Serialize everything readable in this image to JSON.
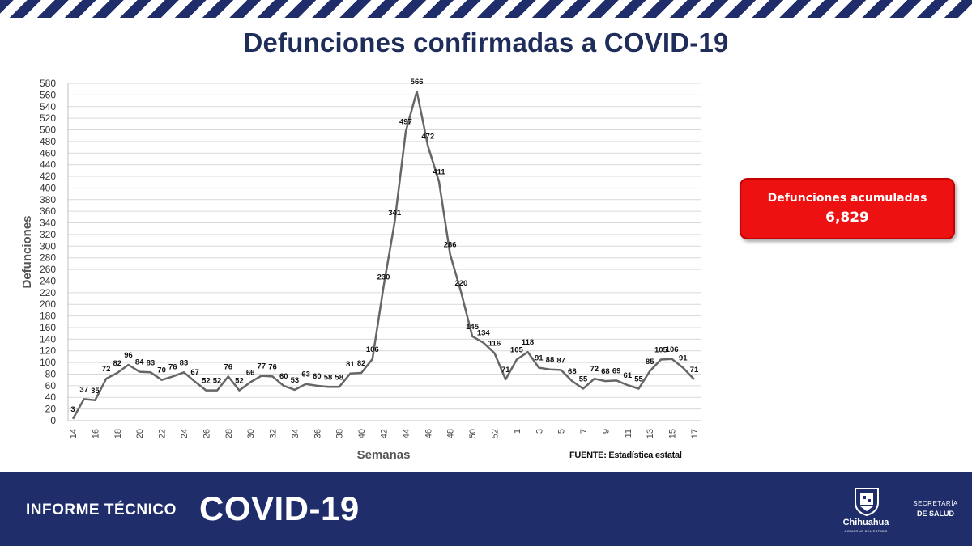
{
  "header": {
    "title": "Defunciones confirmadas a COVID-19"
  },
  "chart_data": {
    "type": "line",
    "title": "Defunciones confirmadas a COVID-19",
    "xlabel": "Semanas",
    "ylabel": "Defunciones",
    "ylim": [
      0,
      580
    ],
    "ytick_step": 20,
    "grid": true,
    "categories": [
      "14",
      "15",
      "16",
      "17",
      "18",
      "19",
      "20",
      "21",
      "22",
      "23",
      "24",
      "25",
      "26",
      "27",
      "28",
      "29",
      "30",
      "31",
      "32",
      "33",
      "34",
      "35",
      "36",
      "37",
      "38",
      "39",
      "40",
      "41",
      "42",
      "43",
      "44",
      "45",
      "46",
      "47",
      "48",
      "49",
      "50",
      "51",
      "52",
      "53",
      "1",
      "2",
      "3",
      "4",
      "5",
      "6",
      "7",
      "8",
      "9",
      "10",
      "11",
      "12",
      "13",
      "14",
      "15",
      "16",
      "17"
    ],
    "tick_labels": [
      "14",
      "16",
      "18",
      "20",
      "22",
      "24",
      "26",
      "28",
      "30",
      "32",
      "34",
      "36",
      "38",
      "40",
      "42",
      "44",
      "46",
      "48",
      "50",
      "52",
      "1",
      "3",
      "5",
      "7",
      "9",
      "11",
      "13",
      "15",
      "17"
    ],
    "values": [
      3,
      37,
      35,
      72,
      82,
      96,
      84,
      83,
      70,
      76,
      83,
      67,
      52,
      52,
      76,
      52,
      66,
      77,
      76,
      60,
      53,
      63,
      60,
      58,
      58,
      81,
      82,
      106,
      230,
      341,
      497,
      566,
      472,
      411,
      286,
      220,
      145,
      134,
      116,
      71,
      105,
      118,
      91,
      88,
      87,
      68,
      55,
      72,
      68,
      69,
      61,
      55,
      85,
      105,
      106,
      91,
      71
    ],
    "color": "#666666"
  },
  "summary": {
    "label": "Defunciones acumuladas",
    "value": "6,829",
    "color": "#ee1111"
  },
  "source": "FUENTE: Estadística estatal",
  "footer": {
    "report_label": "INFORME TÉCNICO",
    "report_topic": "COVID-19",
    "state_name": "Chihuahua",
    "state_gov": "GOBIERNO DEL ESTADO",
    "ministry_line1": "SECRETARÍA",
    "ministry_line2": "DE SALUD",
    "color": "#1f2d6b"
  }
}
